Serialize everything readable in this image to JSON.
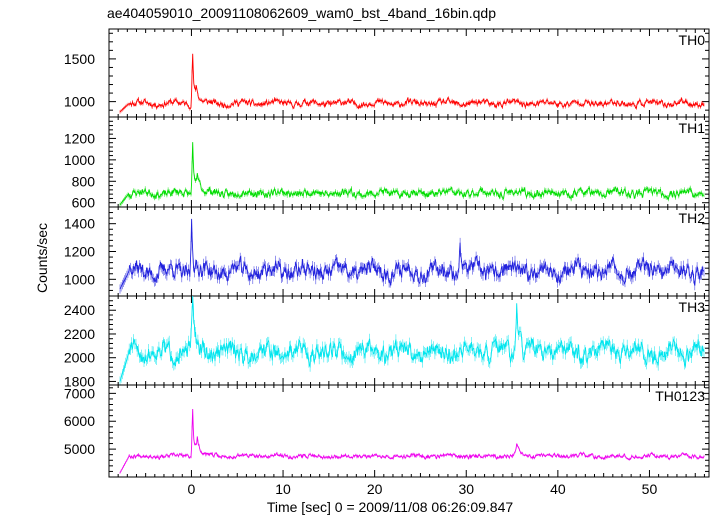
{
  "chart_data": {
    "type": "line",
    "title": "ae404059010_20091108062609_wam0_bst_4band_16bin.qdp",
    "xlabel": "Time [sec] 0 = 2009/11/08 06:26:09.847",
    "ylabel": "Counts/sec",
    "xlim": [
      -9,
      56.5
    ],
    "x_ticks": [
      0,
      10,
      20,
      30,
      40,
      50
    ],
    "x_tick_labels": [
      "0",
      "10",
      "20",
      "30",
      "40",
      "50"
    ],
    "grid": false,
    "panels": [
      {
        "name": "TH0",
        "color": "#ff0000",
        "ylim": [
          820,
          1850
        ],
        "y_ticks": [
          1000,
          1500
        ],
        "y_tick_labels": [
          "1000",
          "1500"
        ],
        "baseline": 980,
        "noise": 45,
        "seed": 11,
        "start": {
          "x": -7.8,
          "y": 880
        },
        "features": [
          {
            "x": 0.1,
            "y": 1800,
            "w": 0.12
          },
          {
            "x": 0.5,
            "y": 1200,
            "w": 0.3
          }
        ]
      },
      {
        "name": "TH1",
        "color": "#00dd00",
        "ylim": [
          560,
          1400
        ],
        "y_ticks": [
          600,
          800,
          1000,
          1200
        ],
        "y_tick_labels": [
          "600",
          "800",
          "1000",
          "1200"
        ],
        "baseline": 690,
        "noise": 45,
        "seed": 23,
        "start": {
          "x": -7.8,
          "y": 580
        },
        "features": [
          {
            "x": 0.1,
            "y": 1350,
            "w": 0.12
          },
          {
            "x": 0.6,
            "y": 900,
            "w": 0.35
          }
        ]
      },
      {
        "name": "TH2",
        "color": "#2222dd",
        "ylim": [
          880,
          1520
        ],
        "y_ticks": [
          1000,
          1200,
          1400
        ],
        "y_tick_labels": [
          "1000",
          "1200",
          "1400"
        ],
        "baseline": 1060,
        "noise": 75,
        "seed": 37,
        "start": {
          "x": -7.8,
          "y": 930
        },
        "features": [
          {
            "x": 0.0,
            "y": 1500,
            "w": 0.15
          },
          {
            "x": 29.3,
            "y": 1340,
            "w": 0.2
          }
        ]
      },
      {
        "name": "TH3",
        "color": "#00e5ee",
        "ylim": [
          1770,
          2520
        ],
        "y_ticks": [
          1800,
          2000,
          2200,
          2400
        ],
        "y_tick_labels": [
          "1800",
          "2000",
          "2200",
          "2400"
        ],
        "baseline": 2050,
        "noise": 95,
        "seed": 51,
        "start": {
          "x": -7.8,
          "y": 1800
        },
        "features": [
          {
            "x": 0.1,
            "y": 2490,
            "w": 0.25
          },
          {
            "x": 35.5,
            "y": 2450,
            "w": 0.3
          }
        ]
      },
      {
        "name": "TH0123",
        "color": "#ee00ee",
        "ylim": [
          4000,
          7300
        ],
        "y_ticks": [
          5000,
          6000,
          7000
        ],
        "y_tick_labels": [
          "5000",
          "6000",
          "7000"
        ],
        "baseline": 4750,
        "noise": 90,
        "seed": 67,
        "start": {
          "x": -7.8,
          "y": 4150
        },
        "features": [
          {
            "x": 0.1,
            "y": 7150,
            "w": 0.12
          },
          {
            "x": 0.6,
            "y": 5500,
            "w": 0.35
          },
          {
            "x": 35.5,
            "y": 5120,
            "w": 0.3
          }
        ]
      }
    ]
  }
}
